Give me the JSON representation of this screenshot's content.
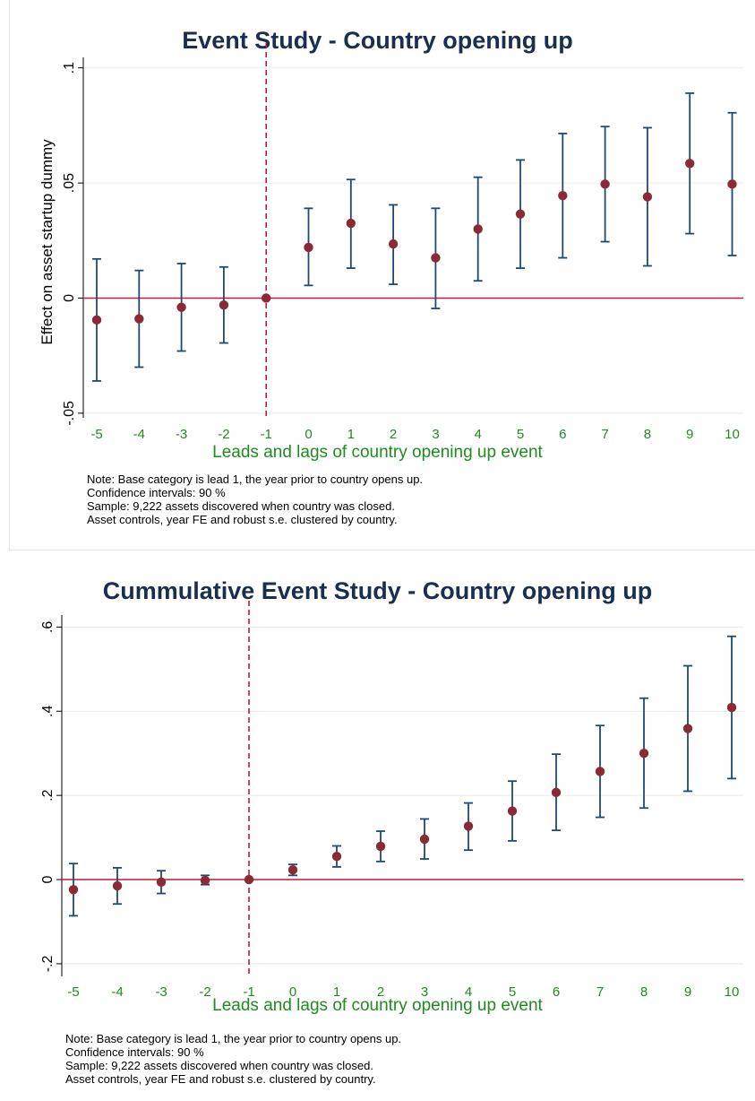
{
  "chart_data": [
    {
      "type": "scatter",
      "title": "Event Study - Country opening up",
      "xlabel": "Leads and lags of country opening up event",
      "ylabel": "Effect on asset startup dummy",
      "categories": [
        "-5",
        "-4",
        "-3",
        "-2",
        "-1",
        "0",
        "1",
        "2",
        "3",
        "4",
        "5",
        "6",
        "7",
        "8",
        "9",
        "10"
      ],
      "x": [
        -5,
        -4,
        -3,
        -2,
        -1,
        0,
        1,
        2,
        3,
        4,
        5,
        6,
        7,
        8,
        9,
        10
      ],
      "y": [
        -0.0095,
        -0.009,
        -0.004,
        -0.003,
        0.0,
        0.022,
        0.0325,
        0.0235,
        0.0175,
        0.03,
        0.0365,
        0.0445,
        0.0495,
        0.044,
        0.0585,
        0.0495
      ],
      "ci_low": [
        -0.036,
        -0.03,
        -0.023,
        -0.0195,
        0.0,
        0.0055,
        0.013,
        0.006,
        -0.0045,
        0.0075,
        0.013,
        0.0175,
        0.0245,
        0.014,
        0.028,
        0.0185
      ],
      "ci_high": [
        0.017,
        0.012,
        0.015,
        0.0135,
        0.0,
        0.039,
        0.0515,
        0.0405,
        0.039,
        0.0525,
        0.06,
        0.0715,
        0.0745,
        0.074,
        0.089,
        0.0805
      ],
      "yticks": [
        -0.05,
        0,
        0.05,
        0.1
      ],
      "ytick_labels": [
        "-.05",
        "0",
        ".05",
        ".1"
      ],
      "ylim": [
        -0.052,
        0.103
      ],
      "reference_line_y": 0,
      "event_line_x": -1,
      "grid": true,
      "notes": [
        "Note: Base category is lead 1, the year prior to country opens up.",
        "Confidence intervals: 90 %",
        "Sample: 9,222 assets discovered when country was closed.",
        "Asset controls, year FE and robust s.e. clustered by country."
      ],
      "colors": {
        "point": "#8b2a34",
        "ci": "#1e4a72",
        "zero_line": "#c8163c",
        "event_line": "#c8163c",
        "tick_x": "#1e8c1e",
        "title": "#1a2e4e"
      }
    },
    {
      "type": "scatter",
      "title": "Cummulative Event Study - Country opening up",
      "xlabel": "Leads and lags of country opening up event",
      "ylabel": "",
      "categories": [
        "-5",
        "-4",
        "-3",
        "-2",
        "-1",
        "0",
        "1",
        "2",
        "3",
        "4",
        "5",
        "6",
        "7",
        "8",
        "9",
        "10"
      ],
      "x": [
        -5,
        -4,
        -3,
        -2,
        -1,
        0,
        1,
        2,
        3,
        4,
        5,
        6,
        7,
        8,
        9,
        10
      ],
      "y": [
        -0.024,
        -0.015,
        -0.006,
        -0.002,
        0.0,
        0.023,
        0.055,
        0.079,
        0.096,
        0.127,
        0.163,
        0.207,
        0.257,
        0.3,
        0.359,
        0.409
      ],
      "ci_low": [
        -0.086,
        -0.058,
        -0.033,
        -0.012,
        0.0,
        0.01,
        0.03,
        0.043,
        0.049,
        0.07,
        0.092,
        0.117,
        0.148,
        0.17,
        0.21,
        0.24
      ],
      "ci_high": [
        0.038,
        0.028,
        0.021,
        0.01,
        0.0,
        0.036,
        0.08,
        0.115,
        0.144,
        0.182,
        0.234,
        0.298,
        0.366,
        0.431,
        0.508,
        0.578
      ],
      "yticks": [
        -0.2,
        0,
        0.2,
        0.4,
        0.6
      ],
      "ytick_labels": [
        "-.2",
        "0",
        ".2",
        ".4",
        ".6"
      ],
      "ylim": [
        -0.23,
        0.62
      ],
      "reference_line_y": 0,
      "event_line_x": -1,
      "grid": true,
      "notes": [
        "Note: Base category is lead 1, the year prior to country opens up.",
        "Confidence intervals: 90 %",
        "Sample: 9,222 assets discovered when country was closed.",
        "Asset controls, year FE and robust s.e. clustered by country."
      ],
      "colors": {
        "point": "#8b2a34",
        "ci": "#1e4a72",
        "zero_line": "#c8163c",
        "event_line": "#c8163c",
        "tick_x": "#1e8c1e",
        "title": "#1a2e4e"
      }
    }
  ]
}
